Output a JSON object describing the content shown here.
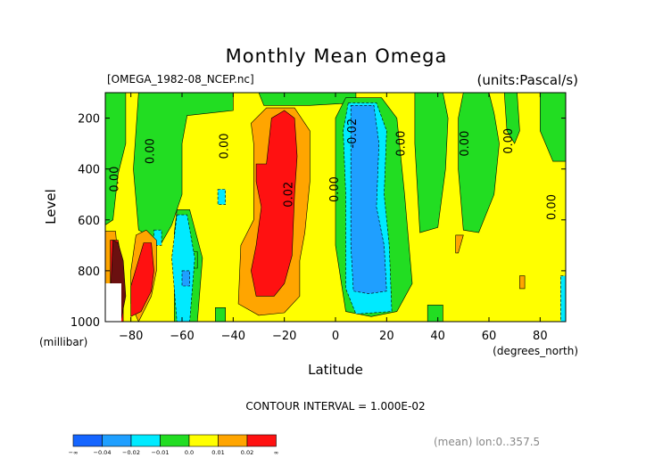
{
  "chart_data": {
    "type": "heatmap",
    "title": "Monthly Mean Omega",
    "file_label": "[OMEGA_1982-08_NCEP.nc]",
    "units_label": "(units:Pascal/s)",
    "xlabel": "Latitude",
    "x_units": "(degrees_north)",
    "ylabel": "Level",
    "y_units": "(millibar)",
    "xlim": [
      -90,
      90
    ],
    "ylim": [
      1000,
      100
    ],
    "x_ticks": [
      -80,
      -60,
      -40,
      -20,
      0,
      20,
      40,
      60,
      80
    ],
    "x_tick_labels": [
      "−80",
      "−60",
      "−40",
      "−20",
      "0",
      "20",
      "40",
      "60",
      "80"
    ],
    "y_ticks": [
      200,
      400,
      600,
      800,
      1000
    ],
    "y_tick_labels": [
      "200",
      "400",
      "600",
      "800",
      "1000"
    ],
    "contour_interval_label": "CONTOUR INTERVAL = 1.000E-02",
    "mean_label": "(mean) lon:0..357.5",
    "colorbar": {
      "colors": [
        "#1565ff",
        "#1f9fff",
        "#00eaff",
        "#22dd22",
        "#ffff00",
        "#ffa500",
        "#ff1111"
      ],
      "labels": [
        "−∞",
        "−0.04",
        "−0.02",
        "−0.01",
        "0.0",
        "0.01",
        "0.02",
        "∞"
      ]
    },
    "background_color": "#ffff00",
    "regions": [
      {
        "level": "green",
        "points": [
          [
            -90,
            100
          ],
          [
            -82,
            100
          ],
          [
            -82,
            300
          ],
          [
            -85,
            420
          ],
          [
            -87,
            600
          ],
          [
            -90,
            620
          ]
        ]
      },
      {
        "level": "green",
        "points": [
          [
            -77,
            100
          ],
          [
            -40,
            100
          ],
          [
            -40,
            170
          ],
          [
            -58,
            190
          ],
          [
            -60,
            300
          ],
          [
            -60,
            500
          ],
          [
            -64,
            620
          ],
          [
            -68,
            690
          ],
          [
            -77,
            640
          ],
          [
            -79,
            400
          ]
        ]
      },
      {
        "level": "green",
        "points": [
          [
            -30,
            100
          ],
          [
            8,
            100
          ],
          [
            8,
            140
          ],
          [
            -10,
            150
          ],
          [
            -28,
            150
          ]
        ]
      },
      {
        "level": "green",
        "points": [
          [
            4,
            120
          ],
          [
            18,
            120
          ],
          [
            24,
            200
          ],
          [
            27,
            500
          ],
          [
            30,
            850
          ],
          [
            24,
            960
          ],
          [
            14,
            980
          ],
          [
            4,
            960
          ],
          [
            0,
            700
          ],
          [
            0,
            200
          ]
        ]
      },
      {
        "level": "green",
        "points": [
          [
            -62,
            560
          ],
          [
            -57,
            560
          ],
          [
            -52,
            750
          ],
          [
            -54,
            1000
          ],
          [
            -63,
            1000
          ],
          [
            -63,
            650
          ]
        ]
      },
      {
        "level": "green",
        "points": [
          [
            31,
            100
          ],
          [
            42,
            100
          ],
          [
            44,
            200
          ],
          [
            43,
            400
          ],
          [
            40,
            630
          ],
          [
            33,
            650
          ],
          [
            31,
            300
          ]
        ]
      },
      {
        "level": "green",
        "points": [
          [
            50,
            100
          ],
          [
            60,
            100
          ],
          [
            62,
            180
          ],
          [
            64,
            300
          ],
          [
            62,
            500
          ],
          [
            56,
            650
          ],
          [
            50,
            640
          ],
          [
            48,
            400
          ],
          [
            48,
            200
          ]
        ]
      },
      {
        "level": "green",
        "points": [
          [
            66,
            100
          ],
          [
            71,
            100
          ],
          [
            72,
            250
          ],
          [
            70,
            300
          ],
          [
            67,
            250
          ]
        ]
      },
      {
        "level": "green",
        "points": [
          [
            80,
            100
          ],
          [
            90,
            100
          ],
          [
            90,
            370
          ],
          [
            85,
            370
          ],
          [
            80,
            250
          ]
        ]
      },
      {
        "level": "green",
        "points": [
          [
            -47,
            945
          ],
          [
            -43,
            945
          ],
          [
            -43,
            1000
          ],
          [
            -47,
            1000
          ]
        ]
      },
      {
        "level": "green",
        "points": [
          [
            36,
            935
          ],
          [
            42,
            935
          ],
          [
            42,
            1000
          ],
          [
            36,
            1000
          ]
        ]
      },
      {
        "level": "green",
        "points": [
          [
            -57,
            725
          ],
          [
            -54,
            725
          ],
          [
            -54,
            790
          ],
          [
            -57,
            790
          ]
        ]
      },
      {
        "level": "cyan",
        "points": [
          [
            -62,
            580
          ],
          [
            -58,
            580
          ],
          [
            -55,
            750
          ],
          [
            -57,
            1000
          ],
          [
            -62,
            1000
          ],
          [
            -64,
            750
          ]
        ]
      },
      {
        "level": "cyan",
        "points": [
          [
            -71,
            640
          ],
          [
            -68,
            640
          ],
          [
            -68,
            700
          ],
          [
            -71,
            700
          ]
        ]
      },
      {
        "level": "cyan",
        "points": [
          [
            5,
            140
          ],
          [
            16,
            140
          ],
          [
            20,
            250
          ],
          [
            19,
            500
          ],
          [
            21,
            700
          ],
          [
            22,
            960
          ],
          [
            8,
            970
          ],
          [
            4,
            870
          ],
          [
            4,
            500
          ],
          [
            3,
            250
          ]
        ]
      },
      {
        "level": "cyan",
        "points": [
          [
            -46,
            480
          ],
          [
            -43,
            480
          ],
          [
            -43,
            540
          ],
          [
            -46,
            540
          ]
        ]
      },
      {
        "level": "cyan",
        "points": [
          [
            88,
            820
          ],
          [
            90,
            820
          ],
          [
            90,
            1000
          ],
          [
            88,
            1000
          ]
        ]
      },
      {
        "level": "blue",
        "points": [
          [
            6,
            150
          ],
          [
            15,
            150
          ],
          [
            17,
            300
          ],
          [
            16,
            550
          ],
          [
            19,
            700
          ],
          [
            20,
            880
          ],
          [
            13,
            890
          ],
          [
            7,
            880
          ],
          [
            6,
            700
          ],
          [
            6,
            300
          ]
        ]
      },
      {
        "level": "blue",
        "points": [
          [
            -60,
            800
          ],
          [
            -57,
            800
          ],
          [
            -57,
            860
          ],
          [
            -60,
            860
          ]
        ]
      },
      {
        "level": "orange",
        "points": [
          [
            -33,
            220
          ],
          [
            -27,
            160
          ],
          [
            -16,
            160
          ],
          [
            -10,
            250
          ],
          [
            -10,
            450
          ],
          [
            -12,
            650
          ],
          [
            -14,
            760
          ],
          [
            -14,
            900
          ],
          [
            -20,
            965
          ],
          [
            -30,
            975
          ],
          [
            -38,
            930
          ],
          [
            -37,
            700
          ],
          [
            -32,
            600
          ],
          [
            -32,
            300
          ]
        ]
      },
      {
        "level": "orange",
        "points": [
          [
            -78,
            660
          ],
          [
            -74,
            640
          ],
          [
            -70,
            680
          ],
          [
            -70,
            800
          ],
          [
            -72,
            900
          ],
          [
            -77,
            1000
          ],
          [
            -80,
            930
          ],
          [
            -80,
            800
          ]
        ]
      },
      {
        "level": "orange",
        "points": [
          [
            -90,
            645
          ],
          [
            -86,
            645
          ],
          [
            -84,
            880
          ],
          [
            -86,
            1000
          ],
          [
            -90,
            1000
          ]
        ]
      },
      {
        "level": "orange",
        "points": [
          [
            47,
            660
          ],
          [
            50,
            660
          ],
          [
            48,
            730
          ],
          [
            47,
            730
          ]
        ]
      },
      {
        "level": "orange",
        "points": [
          [
            72,
            820
          ],
          [
            74,
            820
          ],
          [
            74,
            870
          ],
          [
            72,
            870
          ]
        ]
      },
      {
        "level": "red",
        "points": [
          [
            -31,
            380
          ],
          [
            -27,
            380
          ],
          [
            -25,
            200
          ],
          [
            -20,
            170
          ],
          [
            -16,
            200
          ],
          [
            -15,
            350
          ],
          [
            -16,
            500
          ],
          [
            -17,
            740
          ],
          [
            -20,
            850
          ],
          [
            -24,
            900
          ],
          [
            -31,
            900
          ],
          [
            -33,
            800
          ],
          [
            -31,
            700
          ],
          [
            -29,
            550
          ],
          [
            -31,
            450
          ]
        ]
      },
      {
        "level": "red",
        "points": [
          [
            -75,
            690
          ],
          [
            -72,
            690
          ],
          [
            -71,
            800
          ],
          [
            -72,
            880
          ],
          [
            -76,
            960
          ],
          [
            -80,
            980
          ],
          [
            -80,
            860
          ]
        ]
      },
      {
        "level": "red",
        "points": [
          [
            -88,
            680
          ],
          [
            -85,
            680
          ],
          [
            -83,
            800
          ],
          [
            -83,
            1000
          ],
          [
            -88,
            1000
          ]
        ]
      },
      {
        "level": "darkred",
        "points": [
          [
            -87,
            680
          ],
          [
            -85,
            690
          ],
          [
            -83,
            760
          ],
          [
            -82,
            900
          ],
          [
            -84,
            1000
          ],
          [
            -88,
            1000
          ],
          [
            -88,
            900
          ]
        ]
      }
    ],
    "contour_labels": [
      {
        "text": "0.00",
        "lat": -85,
        "level": 440,
        "rotate": -90
      },
      {
        "text": "0.00",
        "lat": -71,
        "level": 330,
        "rotate": -90
      },
      {
        "text": "0.00",
        "lat": -42,
        "level": 310,
        "rotate": -90
      },
      {
        "text": "0.02",
        "lat": -17,
        "level": 500,
        "rotate": -90
      },
      {
        "text": "0.00",
        "lat": 1,
        "level": 480,
        "rotate": -90
      },
      {
        "text": "-0.02",
        "lat": 8,
        "level": 260,
        "rotate": -90
      },
      {
        "text": "0.00",
        "lat": 27,
        "level": 300,
        "rotate": -90
      },
      {
        "text": "0.00",
        "lat": 52,
        "level": 300,
        "rotate": -90
      },
      {
        "text": "0.00",
        "lat": 69,
        "level": 290,
        "rotate": -90
      },
      {
        "text": "0.00",
        "lat": 86,
        "level": 550,
        "rotate": -90
      }
    ]
  }
}
